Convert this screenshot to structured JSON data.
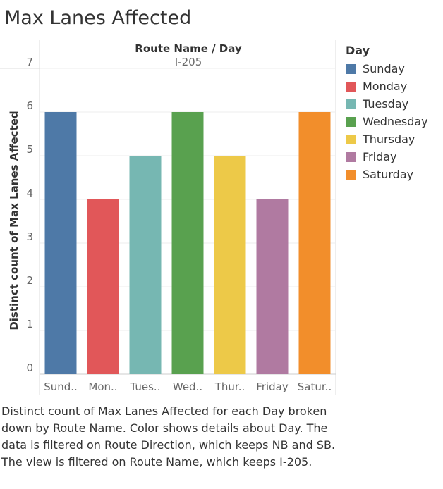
{
  "title": "Max Lanes Affected",
  "chart_data": {
    "type": "bar",
    "header": "Route Name  /  Day",
    "column": "I-205",
    "ylabel": "Distinct count of Max Lanes Affected",
    "ylim": [
      0,
      7
    ],
    "yticks": [
      0,
      1,
      2,
      3,
      4,
      5,
      6,
      7
    ],
    "categories": [
      "Sunday",
      "Monday",
      "Tuesday",
      "Wednesday",
      "Thursday",
      "Friday",
      "Saturday"
    ],
    "category_labels": [
      "Sund..",
      "Mon..",
      "Tues..",
      "Wed..",
      "Thur..",
      "Friday",
      "Satur.."
    ],
    "values": [
      6,
      4,
      5,
      6,
      5,
      4,
      6
    ],
    "colors": [
      "#4e79a7",
      "#e15759",
      "#76b7b2",
      "#59a14f",
      "#edc948",
      "#b07aa1",
      "#f28e2b"
    ],
    "grid": true,
    "legend": {
      "title": "Day",
      "placement": "right",
      "items": [
        "Sunday",
        "Monday",
        "Tuesday",
        "Wednesday",
        "Thursday",
        "Friday",
        "Saturday"
      ]
    }
  },
  "caption": "Distinct count of Max Lanes Affected for each Day broken down by Route Name.  Color shows details about Day. The data is filtered on Route Direction, which keeps NB and SB. The view is filtered on Route Name, which keeps I-205."
}
